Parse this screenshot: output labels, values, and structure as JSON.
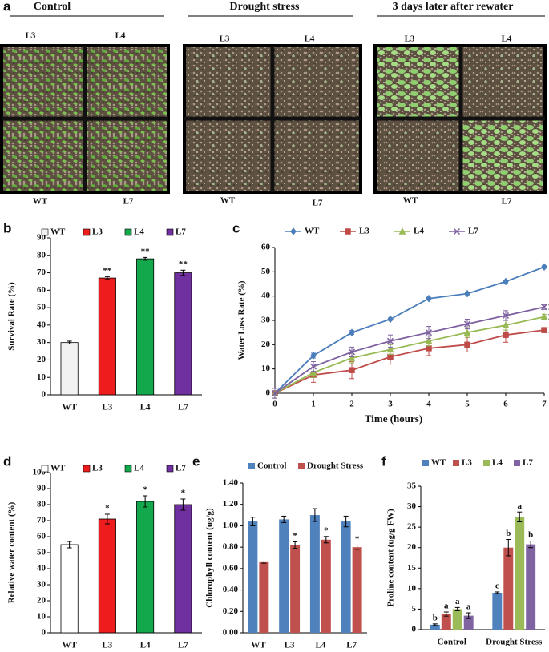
{
  "panel_a": {
    "panel": "a",
    "columns": [
      {
        "title": "Control",
        "labels": [
          "L3",
          "L4",
          "WT",
          "L7"
        ]
      },
      {
        "title": "Drought stress",
        "labels": [
          "L3",
          "L4",
          "WT",
          "L7"
        ]
      },
      {
        "title": "3 days later after rewater",
        "labels": [
          "L3",
          "L4",
          "WT",
          "L7"
        ]
      }
    ]
  },
  "chart_data": [
    {
      "panel": "b",
      "type": "bar",
      "ylabel": "Survival Rate (%)",
      "categories": [
        "WT",
        "L3",
        "L4",
        "L7"
      ],
      "values": [
        30,
        67,
        78,
        70
      ],
      "errors": [
        0.8,
        0.8,
        0.8,
        1.5
      ],
      "annotations": [
        null,
        "**",
        "**",
        "**"
      ],
      "colors": [
        "#f2f2f2",
        "#ee1c1c",
        "#12a84b",
        "#7030a0"
      ],
      "ylim": [
        0,
        90
      ],
      "yticks": [
        0,
        10,
        20,
        30,
        40,
        50,
        60,
        70,
        80,
        90
      ]
    },
    {
      "panel": "c",
      "type": "line",
      "xlabel": "Time (hours)",
      "ylabel": "Water Loss Rate (%)",
      "x": [
        0,
        1,
        2,
        3,
        4,
        5,
        6,
        7
      ],
      "xlim": [
        0,
        7
      ],
      "xticks": [
        0,
        1,
        2,
        3,
        4,
        5,
        6,
        7
      ],
      "ylim": [
        0,
        60
      ],
      "yticks": [
        0,
        10,
        20,
        30,
        40,
        50,
        60
      ],
      "series": [
        {
          "name": "WT",
          "color": "#4a7ebb",
          "marker": "diamond",
          "values": [
            0,
            15.5,
            25,
            30.5,
            39,
            41,
            46,
            52
          ],
          "errors": [
            2,
            1,
            0.8,
            0.5,
            0.5,
            0.5,
            0.6,
            0.5
          ]
        },
        {
          "name": "L3",
          "color": "#be4b48",
          "marker": "square",
          "values": [
            0,
            7.5,
            9.5,
            15,
            18.5,
            20,
            24,
            26
          ],
          "errors": [
            2,
            3,
            3.5,
            3,
            3,
            3,
            3,
            1
          ],
          "end_label": "**"
        },
        {
          "name": "L4",
          "color": "#98b954",
          "marker": "triangle",
          "values": [
            0,
            8.5,
            14.5,
            18,
            21.5,
            25,
            28,
            31.5
          ],
          "errors": [
            2,
            2,
            2,
            2,
            2,
            2,
            2,
            1
          ],
          "end_label": "**"
        },
        {
          "name": "L7",
          "color": "#7d60a0",
          "marker": "x",
          "values": [
            0,
            11,
            17,
            21.5,
            25,
            28.5,
            32,
            35.5
          ],
          "errors": [
            2,
            2,
            2,
            2.5,
            2.5,
            2,
            2,
            1
          ],
          "end_label": "**"
        }
      ]
    },
    {
      "panel": "d",
      "type": "bar",
      "ylabel": "Relative water content (%)",
      "categories": [
        "WT",
        "L3",
        "L4",
        "L7"
      ],
      "values": [
        55,
        71,
        82,
        80
      ],
      "errors": [
        2,
        3,
        3.5,
        3.5
      ],
      "annotations": [
        null,
        "*",
        "*",
        "*"
      ],
      "colors": [
        "#ffffff",
        "#ee1c1c",
        "#12a84b",
        "#7030a0"
      ],
      "ylim": [
        0,
        100
      ],
      "yticks": [
        0,
        10,
        20,
        30,
        40,
        50,
        60,
        70,
        80,
        90,
        100
      ]
    },
    {
      "panel": "e",
      "type": "bar",
      "ylabel": "Chlorophyll content (ug/g)",
      "categories": [
        "WT",
        "L3",
        "L4",
        "L7"
      ],
      "ylim": [
        0,
        1.4
      ],
      "yticks": [
        {
          "value": 0,
          "label": "0.00"
        },
        {
          "value": 0.2,
          "label": "0.20"
        },
        {
          "value": 0.4,
          "label": "0.40"
        },
        {
          "value": 0.6,
          "label": "0.60"
        },
        {
          "value": 0.8,
          "label": "0.80"
        },
        {
          "value": 1,
          "label": "1.00"
        },
        {
          "value": 1.2,
          "label": "1.20"
        },
        {
          "value": 1.4,
          "label": "1.40"
        }
      ],
      "series": [
        {
          "name": "Control",
          "color": "#4f81bd",
          "values": [
            1.04,
            1.06,
            1.1,
            1.04
          ],
          "errors": [
            0.04,
            0.03,
            0.06,
            0.05
          ]
        },
        {
          "name": "Drought Stress",
          "color": "#c0504d",
          "values": [
            0.66,
            0.82,
            0.87,
            0.8
          ],
          "errors": [
            0.01,
            0.03,
            0.03,
            0.02
          ],
          "annotations": [
            null,
            "*",
            "*",
            "*"
          ]
        }
      ]
    },
    {
      "panel": "f",
      "type": "bar",
      "ylabel": "Proline content (ug/g FW)",
      "categories": [
        "Control",
        "Drought Stress"
      ],
      "ylim": [
        0,
        35
      ],
      "yticks": [
        0,
        5,
        10,
        15,
        20,
        25,
        30,
        35
      ],
      "series": [
        {
          "name": "WT",
          "color": "#4f81bd",
          "values": [
            1.2,
            9
          ],
          "errors": [
            0.2,
            0.2
          ],
          "annotations": [
            "b",
            "c"
          ]
        },
        {
          "name": "L3",
          "color": "#c0504d",
          "values": [
            3.8,
            20
          ],
          "errors": [
            0.5,
            2
          ],
          "annotations": [
            "a",
            "b"
          ]
        },
        {
          "name": "L4",
          "color": "#9bbb59",
          "values": [
            5,
            27.5
          ],
          "errors": [
            0.4,
            1.2
          ],
          "annotations": [
            "a",
            "a"
          ]
        },
        {
          "name": "L7",
          "color": "#8064a2",
          "values": [
            3.4,
            20.8
          ],
          "errors": [
            0.7,
            0.8
          ],
          "annotations": [
            "a",
            "b"
          ]
        }
      ]
    }
  ]
}
